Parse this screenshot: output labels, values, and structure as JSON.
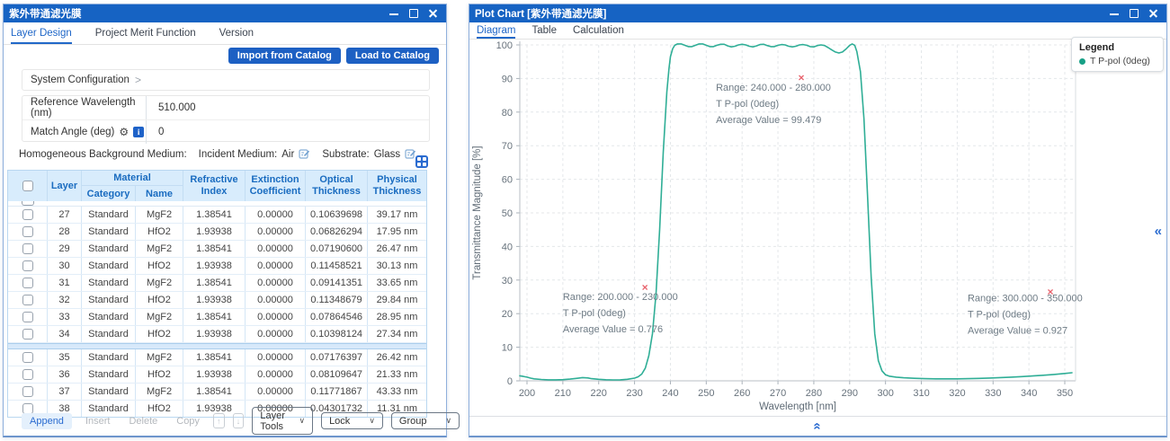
{
  "icons": {
    "gear": "⚙",
    "info": "i",
    "chevron_right": ">",
    "dropdown": "∨",
    "move_up": "↑",
    "move_down": "↓",
    "collapse": "«",
    "marker": "×"
  },
  "left_window": {
    "title": "紫外带通滤光膜",
    "tabs": [
      {
        "label": "Layer Design",
        "active": true
      },
      {
        "label": "Project Merit Function",
        "active": false
      },
      {
        "label": "Version",
        "active": false
      }
    ],
    "buttons": {
      "import": "Import from Catalog",
      "load": "Load to Catalog"
    },
    "system_configuration": {
      "label": "System Configuration"
    },
    "fields": [
      {
        "label": "Reference Wavelength (nm)",
        "value": "510.000"
      },
      {
        "label": "Match Angle (deg)",
        "value": "0"
      }
    ],
    "background_medium": {
      "label": "Homogeneous Background Medium:",
      "incident_label": "Incident Medium:",
      "incident_value": "Air",
      "substrate_label": "Substrate:",
      "substrate_value": "Glass"
    },
    "table": {
      "headers": {
        "layer": "Layer",
        "material": "Material",
        "category": "Category",
        "name": "Name",
        "refractive": [
          "Refractive",
          "Index"
        ],
        "extinction": [
          "Extinction",
          "Coefficient"
        ],
        "optical": [
          "Optical",
          "Thickness"
        ],
        "physical": [
          "Physical",
          "Thickness"
        ]
      },
      "scroll_band_after_layer": "34",
      "rows": [
        {
          "layer": "27",
          "category": "Standard",
          "name": "MgF2",
          "refractive_index": "1.38541",
          "extinction_coefficient": "0.00000",
          "optical_thickness": "0.10639698",
          "physical_thickness": "39.17 nm"
        },
        {
          "layer": "28",
          "category": "Standard",
          "name": "HfO2",
          "refractive_index": "1.93938",
          "extinction_coefficient": "0.00000",
          "optical_thickness": "0.06826294",
          "physical_thickness": "17.95 nm"
        },
        {
          "layer": "29",
          "category": "Standard",
          "name": "MgF2",
          "refractive_index": "1.38541",
          "extinction_coefficient": "0.00000",
          "optical_thickness": "0.07190600",
          "physical_thickness": "26.47 nm"
        },
        {
          "layer": "30",
          "category": "Standard",
          "name": "HfO2",
          "refractive_index": "1.93938",
          "extinction_coefficient": "0.00000",
          "optical_thickness": "0.11458521",
          "physical_thickness": "30.13 nm"
        },
        {
          "layer": "31",
          "category": "Standard",
          "name": "MgF2",
          "refractive_index": "1.38541",
          "extinction_coefficient": "0.00000",
          "optical_thickness": "0.09141351",
          "physical_thickness": "33.65 nm"
        },
        {
          "layer": "32",
          "category": "Standard",
          "name": "HfO2",
          "refractive_index": "1.93938",
          "extinction_coefficient": "0.00000",
          "optical_thickness": "0.11348679",
          "physical_thickness": "29.84 nm"
        },
        {
          "layer": "33",
          "category": "Standard",
          "name": "MgF2",
          "refractive_index": "1.38541",
          "extinction_coefficient": "0.00000",
          "optical_thickness": "0.07864546",
          "physical_thickness": "28.95 nm"
        },
        {
          "layer": "34",
          "category": "Standard",
          "name": "HfO2",
          "refractive_index": "1.93938",
          "extinction_coefficient": "0.00000",
          "optical_thickness": "0.10398124",
          "physical_thickness": "27.34 nm"
        },
        {
          "layer": "35",
          "category": "Standard",
          "name": "MgF2",
          "refractive_index": "1.38541",
          "extinction_coefficient": "0.00000",
          "optical_thickness": "0.07176397",
          "physical_thickness": "26.42 nm"
        },
        {
          "layer": "36",
          "category": "Standard",
          "name": "HfO2",
          "refractive_index": "1.93938",
          "extinction_coefficient": "0.00000",
          "optical_thickness": "0.08109647",
          "physical_thickness": "21.33 nm"
        },
        {
          "layer": "37",
          "category": "Standard",
          "name": "MgF2",
          "refractive_index": "1.38541",
          "extinction_coefficient": "0.00000",
          "optical_thickness": "0.11771867",
          "physical_thickness": "43.33 nm"
        },
        {
          "layer": "38",
          "category": "Standard",
          "name": "HfO2",
          "refractive_index": "1.93938",
          "extinction_coefficient": "0.00000",
          "optical_thickness": "0.04301732",
          "physical_thickness": "11.31 nm"
        }
      ]
    },
    "toolbar": {
      "append": "Append",
      "insert": "Insert",
      "delete": "Delete",
      "copy": "Copy",
      "layer_tools": "Layer Tools",
      "lock": "Lock",
      "group": "Group"
    }
  },
  "right_window": {
    "title": "Plot Chart [紫外带通滤光膜]",
    "tabs": [
      {
        "label": "Diagram",
        "active": true
      },
      {
        "label": "Table",
        "active": false
      },
      {
        "label": "Calculation",
        "active": false
      }
    ],
    "legend": {
      "title": "Legend",
      "series": "T P-pol (0deg)",
      "color": "#17a086"
    }
  },
  "chart_data": {
    "type": "line",
    "xlabel": "Wavelength [nm]",
    "ylabel": "Transmittance Magnitude [%]",
    "xlim": [
      198,
      352
    ],
    "ylim": [
      0,
      100
    ],
    "grid": true,
    "legend_position": "top-right",
    "xticks": [
      200,
      210,
      220,
      230,
      240,
      250,
      260,
      270,
      280,
      290,
      300,
      310,
      320,
      330,
      340,
      350
    ],
    "yticks": [
      0,
      10,
      20,
      30,
      40,
      50,
      60,
      70,
      80,
      90,
      100
    ],
    "marker_glyph": "×",
    "series": [
      {
        "name": "T P-pol (0deg)",
        "color": "#2fae96",
        "points": [
          [
            198,
            1.5
          ],
          [
            199,
            1.3
          ],
          [
            200,
            1.1
          ],
          [
            201,
            0.8
          ],
          [
            202,
            0.6
          ],
          [
            204,
            0.4
          ],
          [
            206,
            0.3
          ],
          [
            208,
            0.3
          ],
          [
            210,
            0.35
          ],
          [
            212,
            0.5
          ],
          [
            214,
            0.75
          ],
          [
            215.5,
            0.95
          ],
          [
            217,
            0.85
          ],
          [
            218,
            0.65
          ],
          [
            220,
            0.45
          ],
          [
            222,
            0.32
          ],
          [
            224,
            0.28
          ],
          [
            226,
            0.3
          ],
          [
            228,
            0.45
          ],
          [
            230,
            0.8
          ],
          [
            231,
            1.2
          ],
          [
            232,
            2.0
          ],
          [
            233,
            3.8
          ],
          [
            234,
            7.5
          ],
          [
            235,
            14
          ],
          [
            236,
            26
          ],
          [
            237,
            45
          ],
          [
            238,
            68
          ],
          [
            239,
            86
          ],
          [
            239.6,
            93
          ],
          [
            240,
            96.5
          ],
          [
            240.6,
            98.8
          ],
          [
            241.2,
            99.9
          ],
          [
            242,
            100.3
          ],
          [
            243,
            100.3
          ],
          [
            244,
            99.9
          ],
          [
            245,
            99.5
          ],
          [
            246,
            99.5
          ],
          [
            247,
            99.9
          ],
          [
            248,
            100.3
          ],
          [
            249,
            100.3
          ],
          [
            250,
            99.9
          ],
          [
            251,
            99.5
          ],
          [
            252,
            99.5
          ],
          [
            253,
            99.9
          ],
          [
            254,
            100.2
          ],
          [
            255,
            100.2
          ],
          [
            256,
            99.7
          ],
          [
            257,
            99.4
          ],
          [
            258,
            99.6
          ],
          [
            259,
            100.0
          ],
          [
            260,
            100.2
          ],
          [
            261,
            100.0
          ],
          [
            262,
            99.6
          ],
          [
            263,
            99.4
          ],
          [
            264,
            99.7
          ],
          [
            265,
            100.1
          ],
          [
            266,
            100.2
          ],
          [
            267,
            99.8
          ],
          [
            268,
            99.5
          ],
          [
            269,
            99.5
          ],
          [
            270,
            99.9
          ],
          [
            271,
            100.1
          ],
          [
            272,
            100.0
          ],
          [
            273,
            99.6
          ],
          [
            274,
            99.4
          ],
          [
            275,
            99.6
          ],
          [
            276,
            100.0
          ],
          [
            277,
            100.1
          ],
          [
            278,
            99.9
          ],
          [
            279,
            99.5
          ],
          [
            280,
            99.4
          ],
          [
            281,
            99.8
          ],
          [
            282,
            100.0
          ],
          [
            283,
            99.8
          ],
          [
            284,
            99.2
          ],
          [
            285,
            98.5
          ],
          [
            286,
            97.9
          ],
          [
            287,
            97.6
          ],
          [
            288,
            97.9
          ],
          [
            289,
            98.8
          ],
          [
            290,
            99.9
          ],
          [
            290.7,
            100.3
          ],
          [
            291.4,
            99.9
          ],
          [
            292,
            98.0
          ],
          [
            293,
            92.0
          ],
          [
            294,
            78.0
          ],
          [
            295,
            55.0
          ],
          [
            296,
            31.0
          ],
          [
            297,
            14.0
          ],
          [
            298,
            6.0
          ],
          [
            299,
            3.0
          ],
          [
            300,
            1.8
          ],
          [
            301,
            1.4
          ],
          [
            303,
            1.1
          ],
          [
            305,
            0.9
          ],
          [
            308,
            0.75
          ],
          [
            311,
            0.65
          ],
          [
            314,
            0.6
          ],
          [
            317,
            0.58
          ],
          [
            320,
            0.6
          ],
          [
            323,
            0.65
          ],
          [
            326,
            0.72
          ],
          [
            329,
            0.82
          ],
          [
            332,
            0.95
          ],
          [
            335,
            1.1
          ],
          [
            338,
            1.25
          ],
          [
            341,
            1.45
          ],
          [
            344,
            1.65
          ],
          [
            347,
            1.9
          ],
          [
            350,
            2.2
          ],
          [
            352,
            2.4
          ]
        ]
      }
    ],
    "annotations": [
      {
        "range": "Range: 200.000 - 230.000",
        "series": "T P-pol (0deg)",
        "average": "Average Value = 0.776",
        "marker": [
          232.9,
          27.8
        ],
        "text_anchor": [
          210,
          26.8
        ]
      },
      {
        "range": "Range: 240.000 - 280.000",
        "series": "T P-pol (0deg)",
        "average": "Average Value = 99.479",
        "marker": [
          276.5,
          90.2
        ],
        "text_anchor": [
          252.7,
          89.0
        ]
      },
      {
        "range": "Range: 300.000 - 350.000",
        "series": "T P-pol (0deg)",
        "average": "Average Value = 0.927",
        "marker": [
          346.0,
          26.5
        ],
        "text_anchor": [
          322.9,
          26.3
        ]
      }
    ]
  }
}
